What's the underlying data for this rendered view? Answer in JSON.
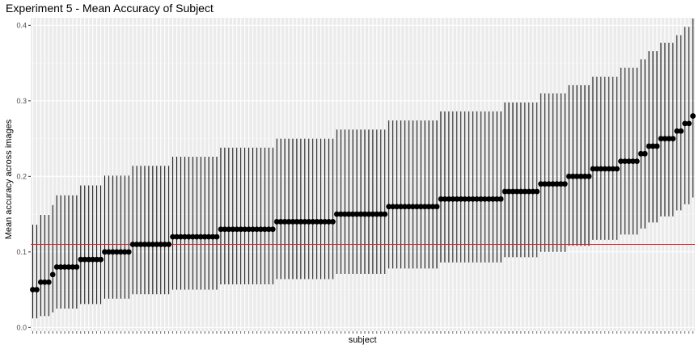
{
  "chart_data": {
    "type": "scatter",
    "title": "Experiment 5 - Mean Accuracy of Subject",
    "xlabel": "subject",
    "ylabel": "Mean accuracy across images",
    "ylim": [
      -0.005,
      0.41
    ],
    "yticks": [
      {
        "value": 0.0,
        "label": "0.0"
      },
      {
        "value": 0.1,
        "label": "0.1"
      },
      {
        "value": 0.2,
        "label": "0.2"
      },
      {
        "value": 0.3,
        "label": "0.3"
      },
      {
        "value": 0.4,
        "label": "0.4"
      }
    ],
    "reference_line": {
      "y": 0.11,
      "color": "#e41a1c"
    },
    "colors": {
      "panel": "#ebebeb",
      "grid_major": "#ffffff",
      "point": "#000000",
      "errorbar": "#000000"
    },
    "grid": true,
    "legend": "none",
    "series": [
      {
        "groups": [
          {
            "y": 0.05,
            "ymin": 0.012,
            "ymax": 0.136,
            "n": 2
          },
          {
            "y": 0.06,
            "ymin": 0.015,
            "ymax": 0.149,
            "n": 3
          },
          {
            "y": 0.07,
            "ymin": 0.02,
            "ymax": 0.162,
            "n": 1
          },
          {
            "y": 0.08,
            "ymin": 0.025,
            "ymax": 0.175,
            "n": 6
          },
          {
            "y": 0.09,
            "ymin": 0.031,
            "ymax": 0.188,
            "n": 6
          },
          {
            "y": 0.1,
            "ymin": 0.038,
            "ymax": 0.201,
            "n": 7
          },
          {
            "y": 0.11,
            "ymin": 0.044,
            "ymax": 0.214,
            "n": 10
          },
          {
            "y": 0.12,
            "ymin": 0.05,
            "ymax": 0.226,
            "n": 12
          },
          {
            "y": 0.13,
            "ymin": 0.057,
            "ymax": 0.238,
            "n": 14
          },
          {
            "y": 0.14,
            "ymin": 0.064,
            "ymax": 0.25,
            "n": 15
          },
          {
            "y": 0.15,
            "ymin": 0.071,
            "ymax": 0.262,
            "n": 13
          },
          {
            "y": 0.16,
            "ymin": 0.078,
            "ymax": 0.274,
            "n": 13
          },
          {
            "y": 0.17,
            "ymin": 0.086,
            "ymax": 0.286,
            "n": 16
          },
          {
            "y": 0.18,
            "ymin": 0.093,
            "ymax": 0.298,
            "n": 9
          },
          {
            "y": 0.19,
            "ymin": 0.1,
            "ymax": 0.31,
            "n": 7
          },
          {
            "y": 0.2,
            "ymin": 0.108,
            "ymax": 0.321,
            "n": 6
          },
          {
            "y": 0.21,
            "ymin": 0.116,
            "ymax": 0.332,
            "n": 7
          },
          {
            "y": 0.22,
            "ymin": 0.123,
            "ymax": 0.344,
            "n": 5
          },
          {
            "y": 0.23,
            "ymin": 0.131,
            "ymax": 0.355,
            "n": 2
          },
          {
            "y": 0.24,
            "ymin": 0.139,
            "ymax": 0.366,
            "n": 3
          },
          {
            "y": 0.25,
            "ymin": 0.147,
            "ymax": 0.377,
            "n": 4
          },
          {
            "y": 0.26,
            "ymin": 0.155,
            "ymax": 0.387,
            "n": 2
          },
          {
            "y": 0.27,
            "ymin": 0.163,
            "ymax": 0.398,
            "n": 2
          },
          {
            "y": 0.28,
            "ymin": 0.172,
            "ymax": 0.409,
            "n": 1
          }
        ]
      }
    ]
  }
}
